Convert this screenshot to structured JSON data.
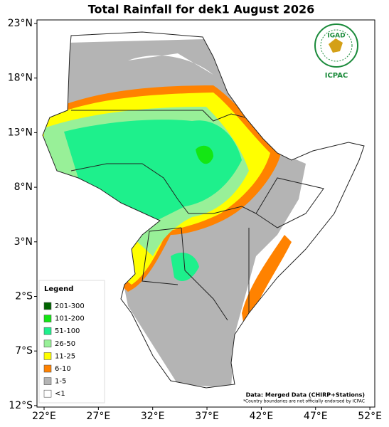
{
  "map": {
    "title": "Total Rainfall for dek1 August 2026",
    "xticks": [
      {
        "value": 22,
        "label": "22°E"
      },
      {
        "value": 27,
        "label": "27°E"
      },
      {
        "value": 32,
        "label": "32°E"
      },
      {
        "value": 37,
        "label": "37°E"
      },
      {
        "value": 42,
        "label": "42°E"
      },
      {
        "value": 47,
        "label": "47°E"
      },
      {
        "value": 52,
        "label": "52°E"
      }
    ],
    "yticks": [
      {
        "value": 23,
        "label": "23°N"
      },
      {
        "value": 18,
        "label": "18°N"
      },
      {
        "value": 13,
        "label": "13°N"
      },
      {
        "value": 8,
        "label": "8°N"
      },
      {
        "value": 3,
        "label": "3°N"
      },
      {
        "value": -2,
        "label": "2°S"
      },
      {
        "value": -7,
        "label": "7°S"
      },
      {
        "value": -12,
        "label": "12°S"
      }
    ],
    "legend": {
      "title": "Legend",
      "items": [
        {
          "label": "201-300",
          "color": "#006400"
        },
        {
          "label": "101-200",
          "color": "#14e614"
        },
        {
          "label": "51-100",
          "color": "#1ef08c"
        },
        {
          "label": "26-50",
          "color": "#98f098"
        },
        {
          "label": "11-25",
          "color": "#ffff00"
        },
        {
          "label": "6-10",
          "color": "#ff8200"
        },
        {
          "label": "1-5",
          "color": "#b4b4b4"
        },
        {
          "label": "<1",
          "color": "#ffffff"
        }
      ]
    },
    "source": "Data: Merged Data (CHIRP+Stations)",
    "disclaimer": "*Country boundaries are not officially endorsed by ICPAC",
    "logo": {
      "name": "IGAD",
      "org": "ICPAC"
    }
  }
}
